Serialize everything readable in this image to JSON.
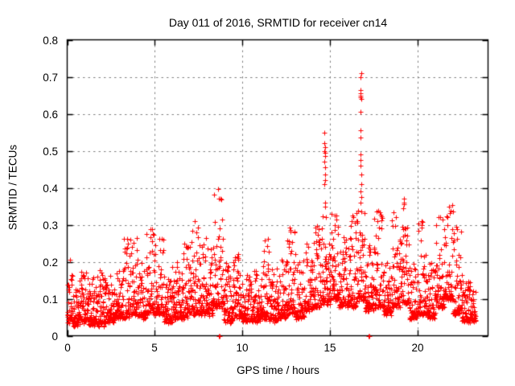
{
  "figure": {
    "title": "Day 011 of 2016, SRMTID for receiver cn14",
    "x_axis": {
      "label": "GPS time / hours",
      "tick_labels": [
        "0",
        "5",
        "10",
        "15",
        "20"
      ]
    },
    "y_axis": {
      "label": "SRMTID / TECUs",
      "tick_labels": [
        "0",
        "0.1",
        "0.2",
        "0.3",
        "0.4",
        "0.5",
        "0.6",
        "0.7",
        "0.8"
      ]
    },
    "colors": {
      "marker": "#ff0000",
      "grid": "#808080",
      "axis": "#000000",
      "background": "#ffffff",
      "text": "#000000"
    }
  },
  "chart_data": {
    "type": "scatter",
    "title": "Day 011 of 2016, SRMTID for receiver cn14",
    "xlabel": "GPS time / hours",
    "ylabel": "SRMTID / TECUs",
    "xlim": [
      0,
      24
    ],
    "ylim": [
      0,
      0.8
    ],
    "xticks": [
      0,
      5,
      10,
      15,
      20
    ],
    "yticks": [
      0,
      0.1,
      0.2,
      0.3,
      0.4,
      0.5,
      0.6,
      0.7,
      0.8
    ],
    "grid": "dashed-major-both",
    "legend": "none",
    "marker": "plus",
    "marker_color": "#ff0000",
    "marker_size_px": 7,
    "sampling_points_per_hour": 120,
    "seed": 20160111,
    "band_envelope_note": "Dense noisy band of + markers; bins are [hour_start, hour_end, min_value, max_value] in TECUs read from the plot; points cluster near min with bursts toward max.",
    "band_envelope": [
      [
        0.0,
        0.3,
        0.04,
        0.21
      ],
      [
        0.3,
        0.7,
        0.03,
        0.13
      ],
      [
        0.7,
        1.2,
        0.04,
        0.17
      ],
      [
        1.2,
        1.7,
        0.03,
        0.16
      ],
      [
        1.7,
        2.2,
        0.03,
        0.18
      ],
      [
        2.2,
        2.7,
        0.04,
        0.16
      ],
      [
        2.7,
        3.2,
        0.05,
        0.18
      ],
      [
        3.2,
        3.6,
        0.05,
        0.27
      ],
      [
        3.6,
        4.0,
        0.06,
        0.26
      ],
      [
        4.0,
        4.5,
        0.05,
        0.2
      ],
      [
        4.5,
        5.0,
        0.06,
        0.3
      ],
      [
        5.0,
        5.5,
        0.06,
        0.26
      ],
      [
        5.5,
        6.0,
        0.04,
        0.16
      ],
      [
        6.0,
        6.5,
        0.05,
        0.2
      ],
      [
        6.5,
        7.0,
        0.05,
        0.25
      ],
      [
        7.0,
        7.5,
        0.06,
        0.31
      ],
      [
        7.5,
        8.3,
        0.06,
        0.28
      ],
      [
        8.3,
        8.9,
        0.08,
        0.41
      ],
      [
        8.9,
        9.5,
        0.04,
        0.2
      ],
      [
        9.5,
        10.0,
        0.05,
        0.22
      ],
      [
        10.0,
        10.5,
        0.04,
        0.16
      ],
      [
        10.5,
        11.0,
        0.04,
        0.18
      ],
      [
        11.0,
        11.5,
        0.05,
        0.27
      ],
      [
        11.5,
        12.0,
        0.04,
        0.18
      ],
      [
        12.0,
        12.5,
        0.05,
        0.2
      ],
      [
        12.5,
        13.0,
        0.06,
        0.29
      ],
      [
        13.0,
        13.5,
        0.05,
        0.2
      ],
      [
        13.5,
        14.0,
        0.07,
        0.25
      ],
      [
        14.0,
        14.5,
        0.08,
        0.3
      ],
      [
        14.5,
        15.0,
        0.09,
        0.33
      ],
      [
        15.0,
        15.5,
        0.1,
        0.33
      ],
      [
        15.5,
        16.0,
        0.08,
        0.28
      ],
      [
        16.0,
        16.5,
        0.08,
        0.33
      ],
      [
        16.5,
        17.0,
        0.1,
        0.35
      ],
      [
        17.0,
        17.5,
        0.07,
        0.25
      ],
      [
        17.5,
        18.0,
        0.08,
        0.35
      ],
      [
        18.0,
        18.5,
        0.06,
        0.2
      ],
      [
        18.5,
        19.0,
        0.08,
        0.33
      ],
      [
        19.0,
        19.5,
        0.09,
        0.3
      ],
      [
        19.5,
        20.0,
        0.05,
        0.2
      ],
      [
        20.0,
        20.5,
        0.06,
        0.31
      ],
      [
        20.5,
        21.0,
        0.05,
        0.2
      ],
      [
        21.0,
        21.5,
        0.08,
        0.33
      ],
      [
        21.5,
        22.0,
        0.1,
        0.36
      ],
      [
        22.0,
        22.5,
        0.06,
        0.3
      ],
      [
        22.5,
        23.0,
        0.04,
        0.15
      ],
      [
        23.0,
        23.3,
        0.04,
        0.12
      ]
    ],
    "spike_columns": [
      {
        "hour": 14.68,
        "values": [
          0.35,
          0.36,
          0.41,
          0.42,
          0.435,
          0.455,
          0.47,
          0.485,
          0.495,
          0.5,
          0.51,
          0.52,
          0.55
        ]
      },
      {
        "hour": 16.75,
        "values": [
          0.36,
          0.375,
          0.39,
          0.41,
          0.435,
          0.46,
          0.475,
          0.49,
          0.535,
          0.555,
          0.605,
          0.64,
          0.645,
          0.65,
          0.655,
          0.665,
          0.7,
          0.71
        ]
      },
      {
        "hour": 19.2,
        "values": [
          0.345,
          0.355,
          0.36,
          0.37
        ]
      }
    ],
    "near_zero_points": [
      [
        8.64,
        0.0
      ],
      [
        8.68,
        0.0
      ],
      [
        17.18,
        0.0
      ],
      [
        17.22,
        0.0
      ]
    ]
  }
}
